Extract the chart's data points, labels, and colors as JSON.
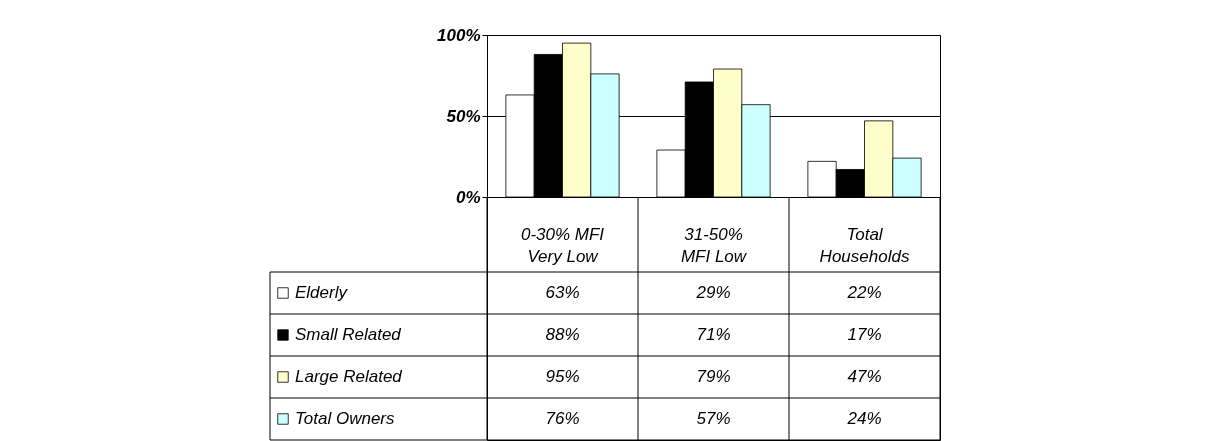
{
  "chart_data": {
    "type": "bar",
    "categories": [
      "0-30% MFI\nVery Low",
      "31-50%\nMFI Low",
      "Total\nHouseholds"
    ],
    "series": [
      {
        "name": "Elderly",
        "color": "#ffffff",
        "values": [
          63,
          29,
          22
        ],
        "value_labels": [
          "63%",
          "29%",
          "22%"
        ]
      },
      {
        "name": "Small Related",
        "color": "#000000",
        "values": [
          88,
          71,
          17
        ],
        "value_labels": [
          "88%",
          "71%",
          "17%"
        ]
      },
      {
        "name": "Large Related",
        "color": "#ffffcc",
        "values": [
          95,
          79,
          47
        ],
        "value_labels": [
          "95%",
          "79%",
          "47%"
        ]
      },
      {
        "name": "Total Owners",
        "color": "#ccffff",
        "values": [
          76,
          57,
          24
        ],
        "value_labels": [
          "76%",
          "57%",
          "24%"
        ]
      }
    ],
    "ylim": [
      0,
      100
    ],
    "yticks": [
      {
        "value": 0,
        "label": "0%"
      },
      {
        "value": 50,
        "label": "50%"
      },
      {
        "value": 100,
        "label": "100%"
      }
    ],
    "grid": "y",
    "legend": "bottom"
  }
}
